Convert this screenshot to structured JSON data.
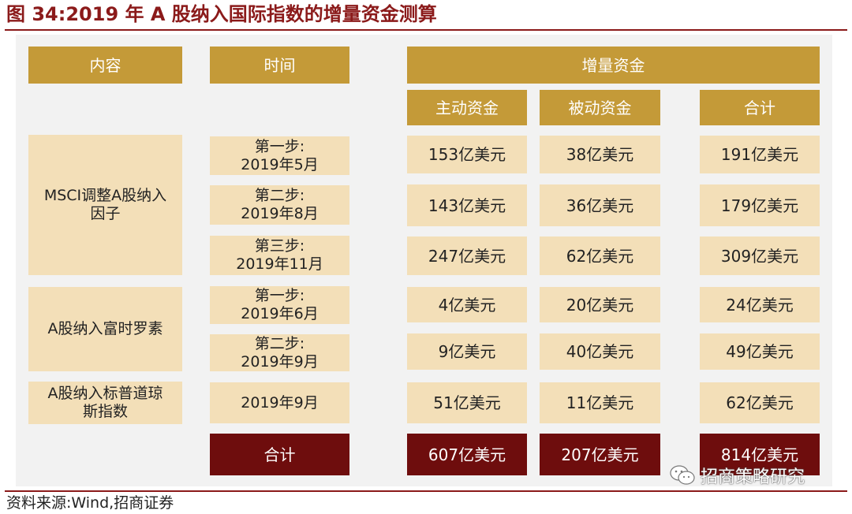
{
  "title": "图 34:2019 年 A 股纳入国际指数的增量资金测算",
  "headers": {
    "content": "内容",
    "time": "时间",
    "incremental": "增量资金",
    "active": "主动资金",
    "passive": "被动资金",
    "total": "合计"
  },
  "groups": [
    {
      "label": "MSCI调整A股纳入因子"
    },
    {
      "label": "A股纳入富时罗素"
    },
    {
      "label": "A股纳入标普道琼斯指数"
    }
  ],
  "rows": [
    {
      "step": "第一步:",
      "date": "2019年5月",
      "active": "153亿美元",
      "passive": "38亿美元",
      "total": "191亿美元"
    },
    {
      "step": "第二步:",
      "date": "2019年8月",
      "active": "143亿美元",
      "passive": "36亿美元",
      "total": "179亿美元"
    },
    {
      "step": "第三步:",
      "date": "2019年11月",
      "active": "247亿美元",
      "passive": "62亿美元",
      "total": "309亿美元"
    },
    {
      "step": "第一步:",
      "date": "2019年6月",
      "active": "4亿美元",
      "passive": "20亿美元",
      "total": "24亿美元"
    },
    {
      "step": "第二步:",
      "date": "2019年9月",
      "active": "9亿美元",
      "passive": "40亿美元",
      "total": "49亿美元"
    },
    {
      "step": "",
      "date": "2019年9月",
      "active": "51亿美元",
      "passive": "11亿美元",
      "total": "62亿美元"
    }
  ],
  "totals": {
    "label": "合计",
    "active": "607亿美元",
    "passive": "207亿美元",
    "total": "814亿美元"
  },
  "source": "资料来源:Wind,招商证券",
  "watermark": {
    "text": "招商策略研究",
    "icon": "wechat-icon"
  }
}
